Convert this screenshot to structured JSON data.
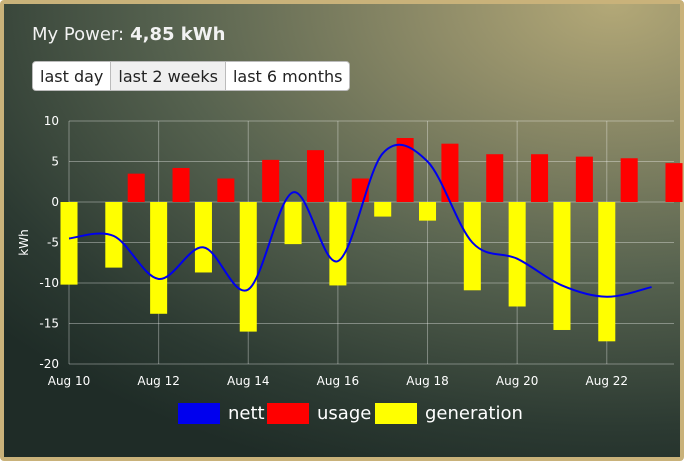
{
  "header": {
    "title_label": "My Power:",
    "title_value": "4,85 kWh"
  },
  "range_buttons": [
    {
      "label": "last day"
    },
    {
      "label": "last 2 weeks"
    },
    {
      "label": "last 6 months"
    }
  ],
  "chart_data": {
    "type": "bar",
    "ylabel": "kWh",
    "ylim": [
      -20,
      10
    ],
    "yticks": [
      10,
      5,
      0,
      -5,
      -10,
      -15,
      -20
    ],
    "xlim": [
      10,
      23.5
    ],
    "xticks": [
      {
        "x": 10,
        "label": "Aug 10"
      },
      {
        "x": 12,
        "label": "Aug 12"
      },
      {
        "x": 14,
        "label": "Aug 14"
      },
      {
        "x": 16,
        "label": "Aug 16"
      },
      {
        "x": 18,
        "label": "Aug 18"
      },
      {
        "x": 20,
        "label": "Aug 20"
      },
      {
        "x": 22,
        "label": "Aug 22"
      }
    ],
    "days": [
      10,
      11,
      12,
      13,
      14,
      15,
      16,
      17,
      18,
      19,
      20,
      21,
      22,
      23
    ],
    "grid": true,
    "legend_position": "bottom",
    "series": [
      {
        "name": "nett",
        "type": "line",
        "color": "#0000ee",
        "values": [
          -4.5,
          -4.2,
          -9.5,
          -5.6,
          -10.8,
          1.2,
          -7.3,
          6.0,
          5.0,
          -5.0,
          -7.0,
          -10.3,
          -11.7,
          -10.5
        ]
      },
      {
        "name": "usage",
        "type": "bar",
        "color": "#ff0000",
        "values": [
          0,
          3.5,
          4.2,
          2.9,
          5.2,
          6.4,
          2.9,
          7.9,
          7.2,
          5.9,
          5.9,
          5.6,
          5.4,
          4.8
        ]
      },
      {
        "name": "generation",
        "type": "bar",
        "color": "#ffff00",
        "values": [
          -10.2,
          -8.1,
          -13.8,
          -8.7,
          -16.0,
          -5.2,
          -10.3,
          -1.8,
          -2.3,
          -10.9,
          -12.9,
          -15.8,
          -17.2,
          0
        ]
      }
    ]
  }
}
